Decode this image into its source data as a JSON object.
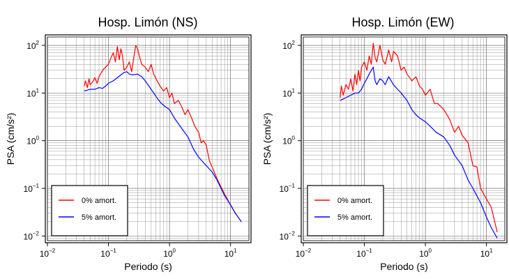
{
  "chart_data": [
    {
      "type": "line",
      "title": "Hosp. Limón (NS)",
      "xlabel": "Periodo (s)",
      "ylabel": "PSA (cm/s²)",
      "xscale": "log",
      "yscale": "log",
      "xlim": [
        0.01,
        20
      ],
      "ylim": [
        0.008,
        150
      ],
      "grid": true,
      "legend_position": "bottom-left",
      "xticks": [
        {
          "base": "10",
          "exp": "−2",
          "value": 0.01
        },
        {
          "base": "10",
          "exp": "−1",
          "value": 0.1
        },
        {
          "base": "10",
          "exp": "0",
          "value": 1
        },
        {
          "base": "10",
          "exp": "1",
          "value": 10
        }
      ],
      "yticks": [
        {
          "base": "10",
          "exp": "−2",
          "value": 0.01
        },
        {
          "base": "10",
          "exp": "−1",
          "value": 0.1
        },
        {
          "base": "10",
          "exp": "0",
          "value": 1
        },
        {
          "base": "10",
          "exp": "1",
          "value": 10
        },
        {
          "base": "10",
          "exp": "2",
          "value": 100
        }
      ],
      "series": [
        {
          "name": "0% amort.",
          "color": "#ff0000",
          "x": [
            0.04,
            0.042,
            0.045,
            0.048,
            0.05,
            0.055,
            0.06,
            0.065,
            0.07,
            0.08,
            0.09,
            0.1,
            0.11,
            0.12,
            0.13,
            0.14,
            0.15,
            0.16,
            0.17,
            0.18,
            0.2,
            0.22,
            0.24,
            0.26,
            0.28,
            0.3,
            0.32,
            0.35,
            0.4,
            0.45,
            0.5,
            0.55,
            0.6,
            0.7,
            0.8,
            0.9,
            1.0,
            1.1,
            1.2,
            1.4,
            1.6,
            1.8,
            2.0,
            2.3,
            2.6,
            3.0,
            3.3,
            3.6,
            4.0,
            4.5,
            5.0,
            6.0,
            8.0,
            10.0,
            12.0,
            15.0
          ],
          "y": [
            14,
            18,
            13,
            20,
            15,
            17,
            21,
            16,
            22,
            30,
            35,
            40,
            55,
            70,
            45,
            95,
            50,
            85,
            60,
            30,
            35,
            45,
            28,
            55,
            100,
            85,
            60,
            40,
            35,
            28,
            40,
            25,
            20,
            14,
            11,
            13,
            8,
            10,
            6,
            7,
            5,
            3.5,
            4.5,
            3.0,
            2.0,
            1.5,
            0.9,
            1.0,
            0.8,
            0.38,
            0.28,
            0.16,
            0.075,
            0.045,
            0.03,
            0.02
          ]
        },
        {
          "name": "5% amort.",
          "color": "#0000ff",
          "x": [
            0.04,
            0.045,
            0.05,
            0.06,
            0.07,
            0.08,
            0.09,
            0.1,
            0.12,
            0.14,
            0.16,
            0.18,
            0.2,
            0.22,
            0.25,
            0.3,
            0.35,
            0.4,
            0.5,
            0.6,
            0.7,
            0.8,
            1.0,
            1.2,
            1.5,
            2.0,
            2.5,
            3.0,
            4.0,
            5.0,
            6.0,
            8.0,
            10.0,
            12.0,
            15.0
          ],
          "y": [
            11,
            11.5,
            12,
            12,
            13,
            12.5,
            14,
            16,
            18,
            21,
            24,
            27,
            28,
            25,
            24,
            25,
            22,
            18,
            12,
            8.5,
            6.5,
            5.5,
            4.5,
            3.0,
            2.0,
            1.2,
            0.65,
            0.45,
            0.3,
            0.22,
            0.15,
            0.07,
            0.045,
            0.03,
            0.02
          ]
        }
      ]
    },
    {
      "type": "line",
      "title": "Hosp. Limón (EW)",
      "xlabel": "Periodo (s)",
      "ylabel": "PSA (cm/s²)",
      "xscale": "log",
      "yscale": "log",
      "xlim": [
        0.01,
        20
      ],
      "ylim": [
        0.008,
        150
      ],
      "grid": true,
      "legend_position": "bottom-left",
      "xticks": [
        {
          "base": "10",
          "exp": "−2",
          "value": 0.01
        },
        {
          "base": "10",
          "exp": "−1",
          "value": 0.1
        },
        {
          "base": "10",
          "exp": "0",
          "value": 1
        },
        {
          "base": "10",
          "exp": "1",
          "value": 10
        }
      ],
      "yticks": [
        {
          "base": "10",
          "exp": "−2",
          "value": 0.01
        },
        {
          "base": "10",
          "exp": "−1",
          "value": 0.1
        },
        {
          "base": "10",
          "exp": "0",
          "value": 1
        },
        {
          "base": "10",
          "exp": "1",
          "value": 10
        },
        {
          "base": "10",
          "exp": "2",
          "value": 100
        }
      ],
      "series": [
        {
          "name": "0% amort.",
          "color": "#ff0000",
          "x": [
            0.04,
            0.042,
            0.045,
            0.05,
            0.055,
            0.06,
            0.065,
            0.07,
            0.075,
            0.08,
            0.085,
            0.09,
            0.1,
            0.11,
            0.12,
            0.13,
            0.14,
            0.15,
            0.16,
            0.18,
            0.2,
            0.22,
            0.25,
            0.28,
            0.3,
            0.35,
            0.4,
            0.45,
            0.5,
            0.6,
            0.7,
            0.8,
            0.9,
            1.0,
            1.2,
            1.4,
            1.6,
            2.0,
            2.5,
            3.0,
            3.5,
            4.0,
            5.0,
            6.0,
            7.0,
            8.0,
            10.0,
            12.0,
            15.0
          ],
          "y": [
            8,
            14,
            9,
            15,
            12,
            20,
            11,
            25,
            15,
            30,
            18,
            35,
            45,
            30,
            60,
            40,
            110,
            55,
            45,
            100,
            50,
            40,
            80,
            45,
            75,
            60,
            30,
            35,
            25,
            18,
            22,
            14,
            12,
            9,
            12,
            6,
            6,
            4.5,
            2.8,
            1.5,
            2.0,
            1.3,
            0.9,
            0.3,
            0.28,
            0.1,
            0.06,
            0.04,
            0.012
          ]
        },
        {
          "name": "5% amort.",
          "color": "#0000ff",
          "x": [
            0.04,
            0.045,
            0.05,
            0.06,
            0.07,
            0.08,
            0.09,
            0.1,
            0.11,
            0.12,
            0.13,
            0.14,
            0.15,
            0.16,
            0.18,
            0.2,
            0.22,
            0.25,
            0.3,
            0.35,
            0.4,
            0.5,
            0.6,
            0.7,
            0.8,
            1.0,
            1.2,
            1.5,
            2.0,
            2.5,
            3.0,
            4.0,
            5.0,
            6.0,
            8.0,
            10.0,
            12.0,
            15.0
          ],
          "y": [
            7,
            7.5,
            8,
            9,
            10,
            10,
            12,
            16,
            20,
            25,
            30,
            35,
            18,
            15,
            20,
            18,
            15,
            22,
            15,
            12,
            10,
            7,
            4.5,
            3.5,
            3.0,
            2.5,
            2.0,
            1.5,
            1.2,
            0.8,
            0.5,
            0.3,
            0.15,
            0.1,
            0.05,
            0.025,
            0.015,
            0.009
          ]
        }
      ]
    }
  ]
}
